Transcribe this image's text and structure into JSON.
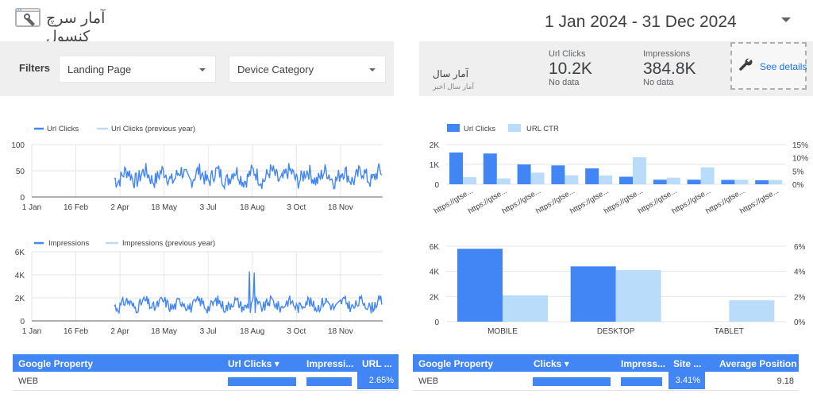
{
  "header": {
    "title": "آمار سرچ کنسول",
    "date_range": "1 Jan 2024 - 31 Dec 2024"
  },
  "filters": {
    "label": "Filters",
    "landing_page": "Landing Page",
    "device_category": "Device Category"
  },
  "scorecard": {
    "title": "آمار سال",
    "subtitle": "آمار سال اخیر",
    "url_clicks": {
      "label": "Url Clicks",
      "value": "10.2K",
      "note": "No data"
    },
    "impressions": {
      "label": "Impressions",
      "value": "384.8K",
      "note": "No data"
    },
    "see_details": "See details"
  },
  "colors": {
    "primary": "#4285f4",
    "light": "#b9dcfa",
    "panel": "#efefef"
  },
  "chart_data": [
    {
      "type": "line",
      "title": "",
      "series": [
        {
          "name": "Url Clicks"
        },
        {
          "name": "Url Clicks (previous year)"
        }
      ],
      "x_ticks": [
        "1 Jan",
        "16 Feb",
        "2 Apr",
        "18 May",
        "3 Jul",
        "18 Aug",
        "3 Oct",
        "18 Nov"
      ],
      "y_ticks": [
        "100",
        "50",
        "0"
      ],
      "ylim": [
        0,
        100
      ],
      "approx_range": "data starts ~end of March, fluctuates roughly 20–65 clicks/day"
    },
    {
      "type": "line",
      "title": "",
      "series": [
        {
          "name": "Impressions"
        },
        {
          "name": "Impressions (previous year)"
        }
      ],
      "x_ticks": [
        "1 Jan",
        "16 Feb",
        "2 Apr",
        "18 May",
        "3 Jul",
        "18 Aug",
        "3 Oct",
        "18 Nov"
      ],
      "y_ticks": [
        "6K",
        "4K",
        "2K",
        "0"
      ],
      "ylim": [
        0,
        6000
      ],
      "spikes": [
        {
          "x": "~16 Aug",
          "y": 4300
        },
        {
          "x": "~21 Aug",
          "y": 4200
        }
      ]
    },
    {
      "type": "bar",
      "series": [
        {
          "name": "Url Clicks",
          "values": [
            1600,
            1550,
            1000,
            950,
            800,
            380,
            230,
            230,
            220,
            200
          ]
        },
        {
          "name": "URL CTR",
          "values": [
            0.027,
            0.022,
            0.044,
            0.034,
            0.033,
            0.102,
            0.025,
            0.064,
            0.017,
            0.016
          ]
        }
      ],
      "categories": [
        "https://gtse...",
        "https://gtse...",
        "https://gtse...",
        "https://gtse...",
        "https://gtse...",
        "https://gtse...",
        "https://gtse...",
        "https://gtse...",
        "https://gtse...",
        "https://gtse..."
      ],
      "y_ticks_left": [
        "2K",
        "1K",
        "0"
      ],
      "y_ticks_right": [
        "15%",
        "10%",
        "5%",
        "0%"
      ],
      "ylim_left": [
        0,
        2000
      ],
      "ylim_right": [
        0,
        0.15
      ]
    },
    {
      "type": "bar",
      "categories": [
        "MOBILE",
        "DESKTOP",
        "TABLET"
      ],
      "series": [
        {
          "name": "Clicks",
          "values": [
            5800,
            4400,
            0
          ]
        },
        {
          "name": "CTR",
          "values": [
            0.021,
            0.041,
            0.017
          ]
        }
      ],
      "y_ticks_left": [
        "6K",
        "4K",
        "2K",
        "0"
      ],
      "y_ticks_right": [
        "6%",
        "4%",
        "2%",
        "0%"
      ],
      "ylim_left": [
        0,
        6000
      ],
      "ylim_right": [
        0,
        0.06
      ]
    }
  ],
  "table_left": {
    "headers": [
      "Google Property",
      "Url Clicks ▾",
      "Impressi...",
      "URL ..."
    ],
    "row": {
      "property": "WEB",
      "url_clicks_fill": 1.0,
      "impressions_fill": 1.0,
      "ctr": "2.65%"
    }
  },
  "table_right": {
    "headers": [
      "Google Property",
      "Clicks ▾",
      "Impress...",
      "Site ...",
      "Average Position"
    ],
    "row": {
      "property": "WEB",
      "clicks_fill": 1.0,
      "impressions_fill": 1.0,
      "ctr": "3.41%",
      "avg_position": "9.18"
    }
  }
}
